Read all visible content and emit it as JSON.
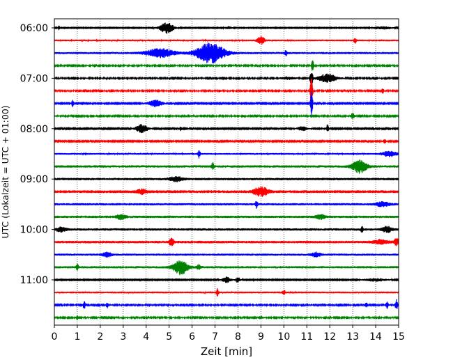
{
  "chart_data": {
    "type": "line",
    "title": "",
    "xlabel": "Zeit  [min]",
    "ylabel": "UTC (Lokalzeit = UTC + 01:00)",
    "xlim": [
      0,
      15
    ],
    "x_ticks": [
      0,
      1,
      2,
      3,
      4,
      5,
      6,
      7,
      8,
      9,
      10,
      11,
      12,
      13,
      14,
      15
    ],
    "y_tick_labels": [
      "06:00",
      "07:00",
      "08:00",
      "09:00",
      "10:00",
      "11:00"
    ],
    "grid": "vertical dotted",
    "trace_colors": [
      "#000000",
      "#ff0000",
      "#0000ff",
      "#008000"
    ],
    "trace_interval_minutes": 15,
    "series": [
      {
        "start": "06:00",
        "color": "#000000",
        "noise": 0.6,
        "events": [
          {
            "t": 0.2,
            "amp": 3,
            "w": 0.05
          },
          {
            "t": 4.9,
            "amp": 8,
            "w": 0.3
          },
          {
            "t": 7.6,
            "amp": 2,
            "w": 0.15
          },
          {
            "t": 14.3,
            "amp": 2,
            "w": 0.4
          }
        ]
      },
      {
        "start": "06:15",
        "color": "#ff0000",
        "noise": 1.2,
        "events": [
          {
            "t": 9.0,
            "amp": 6,
            "w": 0.15
          },
          {
            "t": 13.1,
            "amp": 4,
            "w": 0.05
          }
        ]
      },
      {
        "start": "06:30",
        "color": "#0000ff",
        "noise": 1.5,
        "events": [
          {
            "t": 4.6,
            "amp": 6,
            "w": 0.6
          },
          {
            "t": 6.8,
            "amp": 14,
            "w": 0.6
          },
          {
            "t": 10.1,
            "amp": 4,
            "w": 0.05
          }
        ]
      },
      {
        "start": "06:45",
        "color": "#008000",
        "noise": 0.9,
        "events": [
          {
            "t": 11.25,
            "amp": 8,
            "w": 0.05
          }
        ]
      },
      {
        "start": "07:00",
        "color": "#000000",
        "noise": 0.9,
        "events": [
          {
            "t": 11.2,
            "amp": 12,
            "w": 0.06
          },
          {
            "t": 11.9,
            "amp": 6,
            "w": 0.4
          },
          {
            "t": 10.2,
            "amp": 2,
            "w": 0.3
          }
        ]
      },
      {
        "start": "07:15",
        "color": "#ff0000",
        "noise": 0.9,
        "events": [
          {
            "t": 11.2,
            "amp": 26,
            "w": 0.05
          },
          {
            "t": 7.2,
            "amp": 2,
            "w": 0.05
          },
          {
            "t": 14.3,
            "amp": 4,
            "w": 0.05
          }
        ]
      },
      {
        "start": "07:30",
        "color": "#0000ff",
        "noise": 0.8,
        "events": [
          {
            "t": 0.8,
            "amp": 5,
            "w": 0.05
          },
          {
            "t": 4.4,
            "amp": 5,
            "w": 0.3
          },
          {
            "t": 11.2,
            "amp": 20,
            "w": 0.05
          }
        ]
      },
      {
        "start": "07:45",
        "color": "#008000",
        "noise": 0.9,
        "events": [
          {
            "t": 13.0,
            "amp": 4,
            "w": 0.08
          }
        ]
      },
      {
        "start": "08:00",
        "color": "#000000",
        "noise": 0.8,
        "events": [
          {
            "t": 3.8,
            "amp": 6,
            "w": 0.25
          },
          {
            "t": 5.5,
            "amp": 3,
            "w": 0.05
          },
          {
            "t": 11.9,
            "amp": 6,
            "w": 0.05
          },
          {
            "t": 10.8,
            "amp": 3,
            "w": 0.2
          }
        ]
      },
      {
        "start": "08:15",
        "color": "#ff0000",
        "noise": 0.8,
        "events": [
          {
            "t": 14.4,
            "amp": 3,
            "w": 0.06
          }
        ]
      },
      {
        "start": "08:30",
        "color": "#0000ff",
        "noise": 1.2,
        "events": [
          {
            "t": 6.3,
            "amp": 6,
            "w": 0.05
          },
          {
            "t": 14.6,
            "amp": 4,
            "w": 0.3
          }
        ]
      },
      {
        "start": "08:45",
        "color": "#008000",
        "noise": 1.7,
        "events": [
          {
            "t": 6.9,
            "amp": 5,
            "w": 0.05
          },
          {
            "t": 13.3,
            "amp": 9,
            "w": 0.3
          }
        ]
      },
      {
        "start": "09:00",
        "color": "#000000",
        "noise": 1.7,
        "events": [
          {
            "t": 5.3,
            "amp": 3,
            "w": 0.3
          }
        ]
      },
      {
        "start": "09:15",
        "color": "#ff0000",
        "noise": 2.0,
        "events": [
          {
            "t": 9.0,
            "amp": 6,
            "w": 0.3
          },
          {
            "t": 3.8,
            "amp": 3,
            "w": 0.2
          }
        ]
      },
      {
        "start": "09:30",
        "color": "#0000ff",
        "noise": 1.6,
        "events": [
          {
            "t": 8.8,
            "amp": 5,
            "w": 0.05
          },
          {
            "t": 14.3,
            "amp": 3,
            "w": 0.3
          }
        ]
      },
      {
        "start": "09:45",
        "color": "#008000",
        "noise": 1.7,
        "events": [
          {
            "t": 2.9,
            "amp": 3,
            "w": 0.2
          },
          {
            "t": 11.6,
            "amp": 3,
            "w": 0.2
          }
        ]
      },
      {
        "start": "10:00",
        "color": "#000000",
        "noise": 1.7,
        "events": [
          {
            "t": 13.4,
            "amp": 4,
            "w": 0.05
          },
          {
            "t": 14.5,
            "amp": 4,
            "w": 0.2
          },
          {
            "t": 0.3,
            "amp": 3,
            "w": 0.2
          }
        ]
      },
      {
        "start": "10:15",
        "color": "#ff0000",
        "noise": 1.8,
        "events": [
          {
            "t": 5.1,
            "amp": 5,
            "w": 0.1
          },
          {
            "t": 14.9,
            "amp": 5,
            "w": 0.1
          },
          {
            "t": 14.2,
            "amp": 3,
            "w": 0.3
          }
        ]
      },
      {
        "start": "10:30",
        "color": "#0000ff",
        "noise": 1.5,
        "events": [
          {
            "t": 2.3,
            "amp": 3,
            "w": 0.2
          },
          {
            "t": 11.4,
            "amp": 3,
            "w": 0.2
          }
        ]
      },
      {
        "start": "10:45",
        "color": "#008000",
        "noise": 1.6,
        "events": [
          {
            "t": 5.5,
            "amp": 10,
            "w": 0.3
          },
          {
            "t": 1.0,
            "amp": 4,
            "w": 0.05
          },
          {
            "t": 6.3,
            "amp": 3,
            "w": 0.1
          }
        ]
      },
      {
        "start": "11:00",
        "color": "#000000",
        "noise": 0.7,
        "events": [
          {
            "t": 7.5,
            "amp": 4,
            "w": 0.2
          },
          {
            "t": 8.0,
            "amp": 4,
            "w": 0.1
          },
          {
            "t": 14.0,
            "amp": 2,
            "w": 0.5
          }
        ]
      },
      {
        "start": "11:15",
        "color": "#ff0000",
        "noise": 1.3,
        "events": [
          {
            "t": 7.1,
            "amp": 5,
            "w": 0.05
          },
          {
            "t": 10.0,
            "amp": 4,
            "w": 0.05
          }
        ]
      },
      {
        "start": "11:30",
        "color": "#0000ff",
        "noise": 0.9,
        "events": [
          {
            "t": 1.3,
            "amp": 6,
            "w": 0.05
          },
          {
            "t": 2.3,
            "amp": 4,
            "w": 0.05
          },
          {
            "t": 13.6,
            "amp": 4,
            "w": 0.05
          },
          {
            "t": 14.5,
            "amp": 5,
            "w": 0.05
          },
          {
            "t": 14.9,
            "amp": 9,
            "w": 0.05
          }
        ]
      },
      {
        "start": "11:45",
        "color": "#008000",
        "noise": 0.9,
        "events": [
          {
            "t": 1.0,
            "amp": 3,
            "w": 0.05
          },
          {
            "t": 9.0,
            "amp": 2,
            "w": 0.1
          }
        ]
      }
    ]
  }
}
